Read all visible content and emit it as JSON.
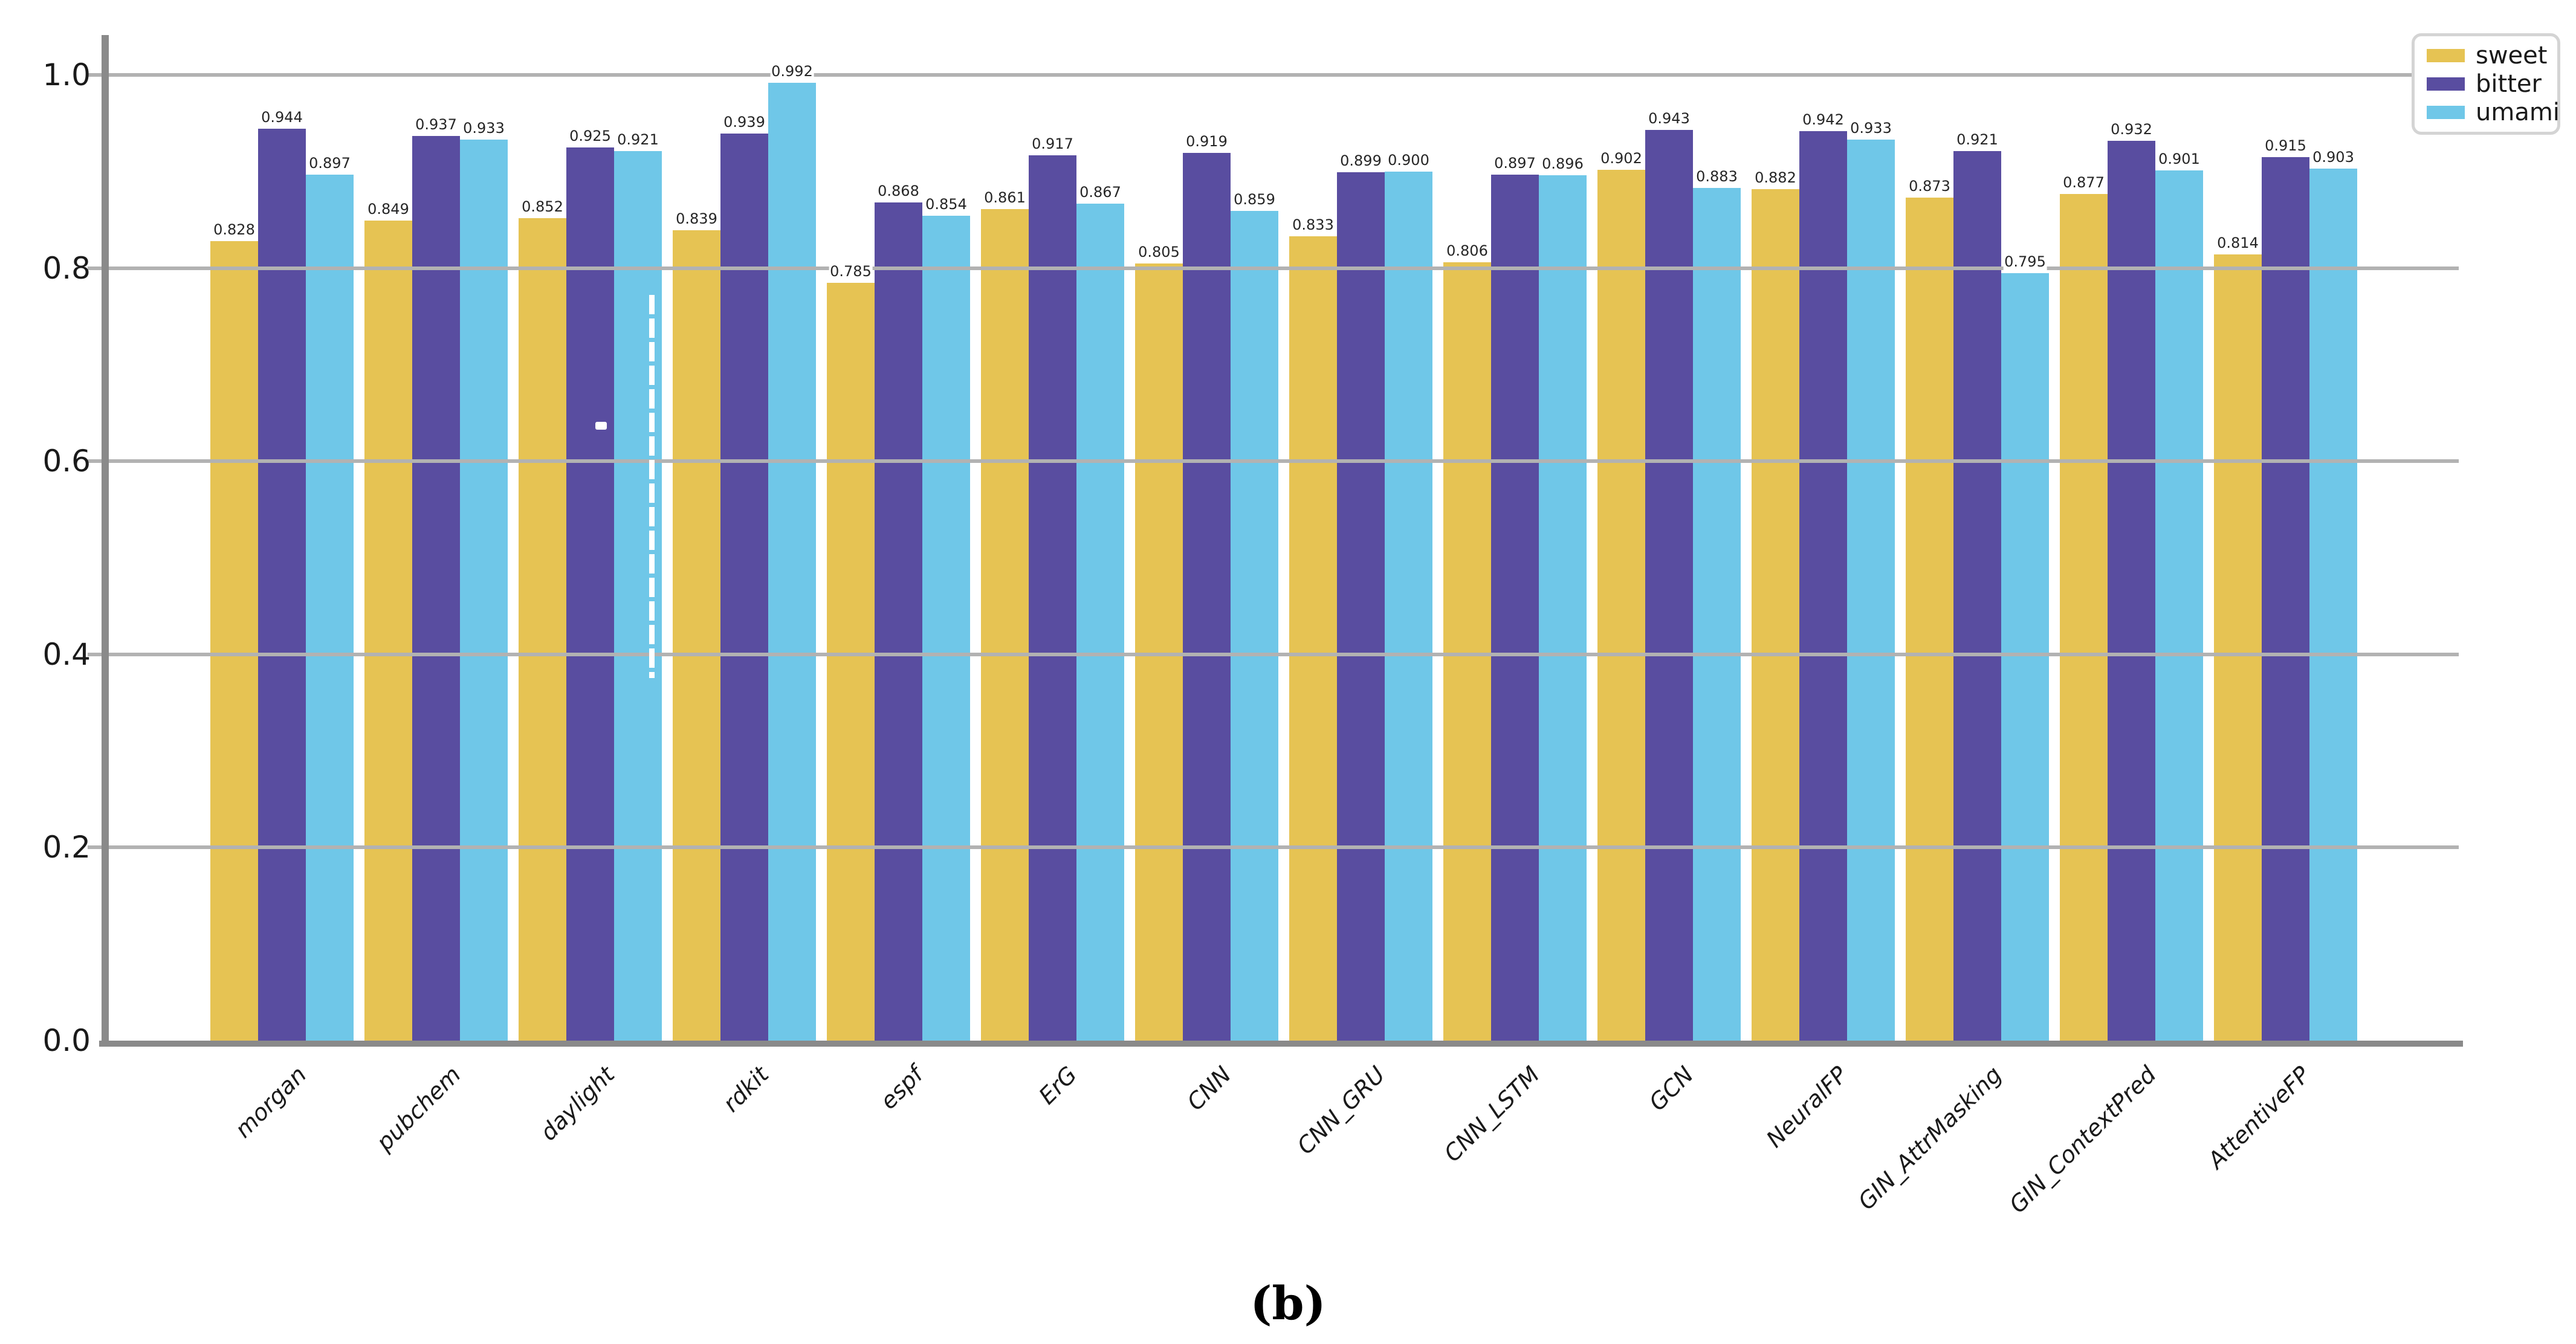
{
  "chart_data": {
    "type": "bar",
    "title": "",
    "xlabel": "",
    "ylabel": "",
    "categories": [
      "morgan",
      "pubchem",
      "daylight",
      "rdkit",
      "espf",
      "ErG",
      "CNN",
      "CNN_GRU",
      "CNN_LSTM",
      "GCN",
      "NeuralFP",
      "GIN_AttrMasking",
      "GIN_ContextPred",
      "AttentiveFP"
    ],
    "series": [
      {
        "name": "sweet",
        "color": "#E6C353",
        "values": [
          0.828,
          0.849,
          0.852,
          0.839,
          0.785,
          0.861,
          0.805,
          0.833,
          0.806,
          0.902,
          0.882,
          0.873,
          0.877,
          0.814
        ]
      },
      {
        "name": "bitter",
        "color": "#594DA0",
        "values": [
          0.944,
          0.937,
          0.925,
          0.939,
          0.868,
          0.917,
          0.919,
          0.899,
          0.897,
          0.943,
          0.942,
          0.921,
          0.932,
          0.915
        ]
      },
      {
        "name": "umami",
        "color": "#6FC7E8",
        "values": [
          0.897,
          0.933,
          0.921,
          0.992,
          0.854,
          0.867,
          0.859,
          0.9,
          0.896,
          0.883,
          0.933,
          0.795,
          0.901,
          0.903
        ]
      }
    ],
    "ylim": [
      0.0,
      1.0
    ],
    "yticks": [
      "0.0",
      "0.2",
      "0.4",
      "0.6",
      "0.8",
      "1.0"
    ],
    "grid": true,
    "grid_on_top_of_bars": true,
    "legend_position": "upper-right",
    "value_label_decimals": 3
  },
  "caption": "(b)",
  "colors": {
    "background": "#ffffff",
    "grid": "#b2b2b2",
    "axis": "#8a8a8a",
    "text": "#1a1a1a",
    "legend_border": "#d4d4d4"
  }
}
